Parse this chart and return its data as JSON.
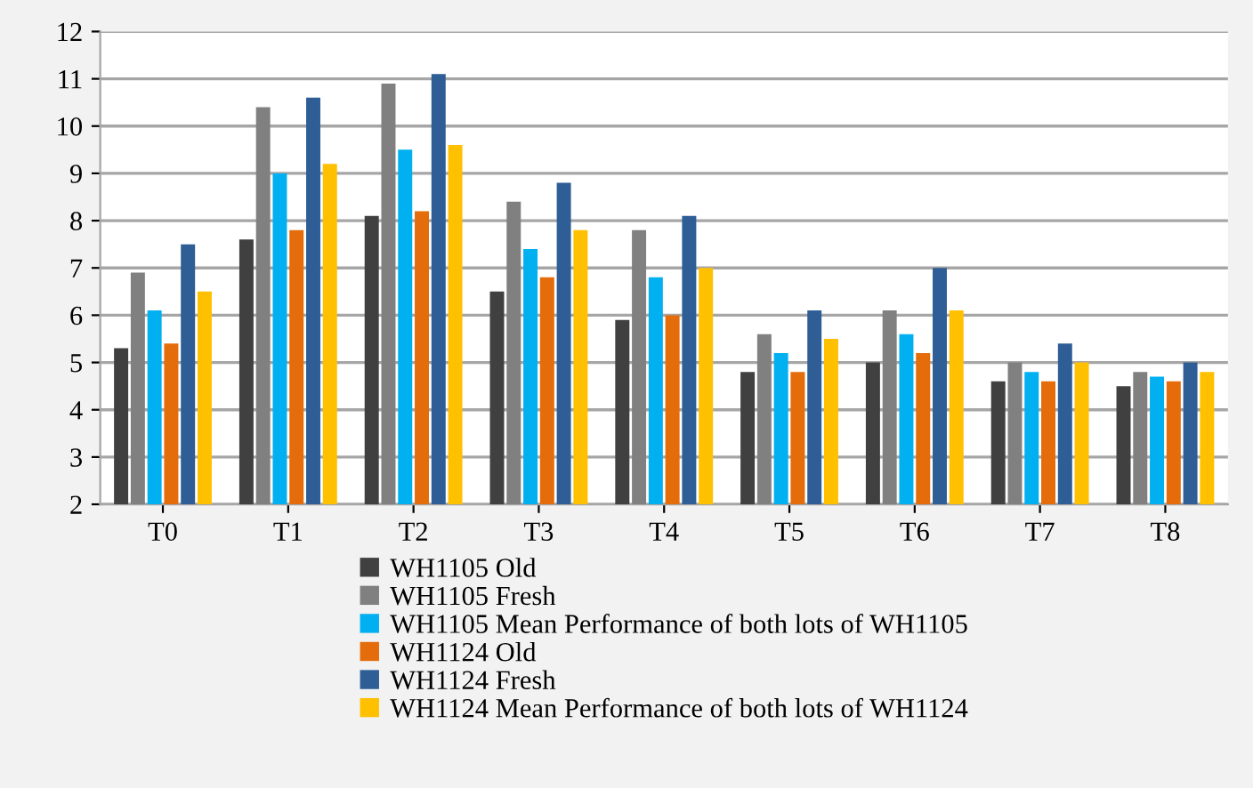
{
  "chart_data": {
    "type": "bar",
    "categories": [
      "T0",
      "T1",
      "T2",
      "T3",
      "T4",
      "T5",
      "T6",
      "T7",
      "T8"
    ],
    "series": [
      {
        "name": "WH1105 Old",
        "color": "#404040",
        "values": [
          5.3,
          7.6,
          8.1,
          6.5,
          5.9,
          4.8,
          5.0,
          4.6,
          4.5
        ]
      },
      {
        "name": "WH1105 Fresh",
        "color": "#808080",
        "values": [
          6.9,
          10.4,
          10.9,
          8.4,
          7.8,
          5.6,
          6.1,
          5.0,
          4.8
        ]
      },
      {
        "name": "WH1105 Mean Performance of both lots of WH1105",
        "color": "#00b0f0",
        "values": [
          6.1,
          9.0,
          9.5,
          7.4,
          6.8,
          5.2,
          5.6,
          4.8,
          4.7
        ]
      },
      {
        "name": "WH1124 Old",
        "color": "#e46c0a",
        "values": [
          5.4,
          7.8,
          8.2,
          6.8,
          6.0,
          4.8,
          5.2,
          4.6,
          4.6
        ]
      },
      {
        "name": "WH1124 Fresh",
        "color": "#2e5e95",
        "values": [
          7.5,
          10.6,
          11.1,
          8.8,
          8.1,
          6.1,
          7.0,
          5.4,
          5.0
        ]
      },
      {
        "name": "WH1124 Mean Performance of both lots of WH1124",
        "color": "#ffc000",
        "values": [
          6.5,
          9.2,
          9.6,
          7.8,
          7.0,
          5.5,
          6.1,
          5.0,
          4.8
        ]
      }
    ],
    "ylim": [
      2,
      12
    ],
    "yticks": [
      2,
      3,
      4,
      5,
      6,
      7,
      8,
      9,
      10,
      11,
      12
    ],
    "grid": "y",
    "legend": "bottom"
  }
}
